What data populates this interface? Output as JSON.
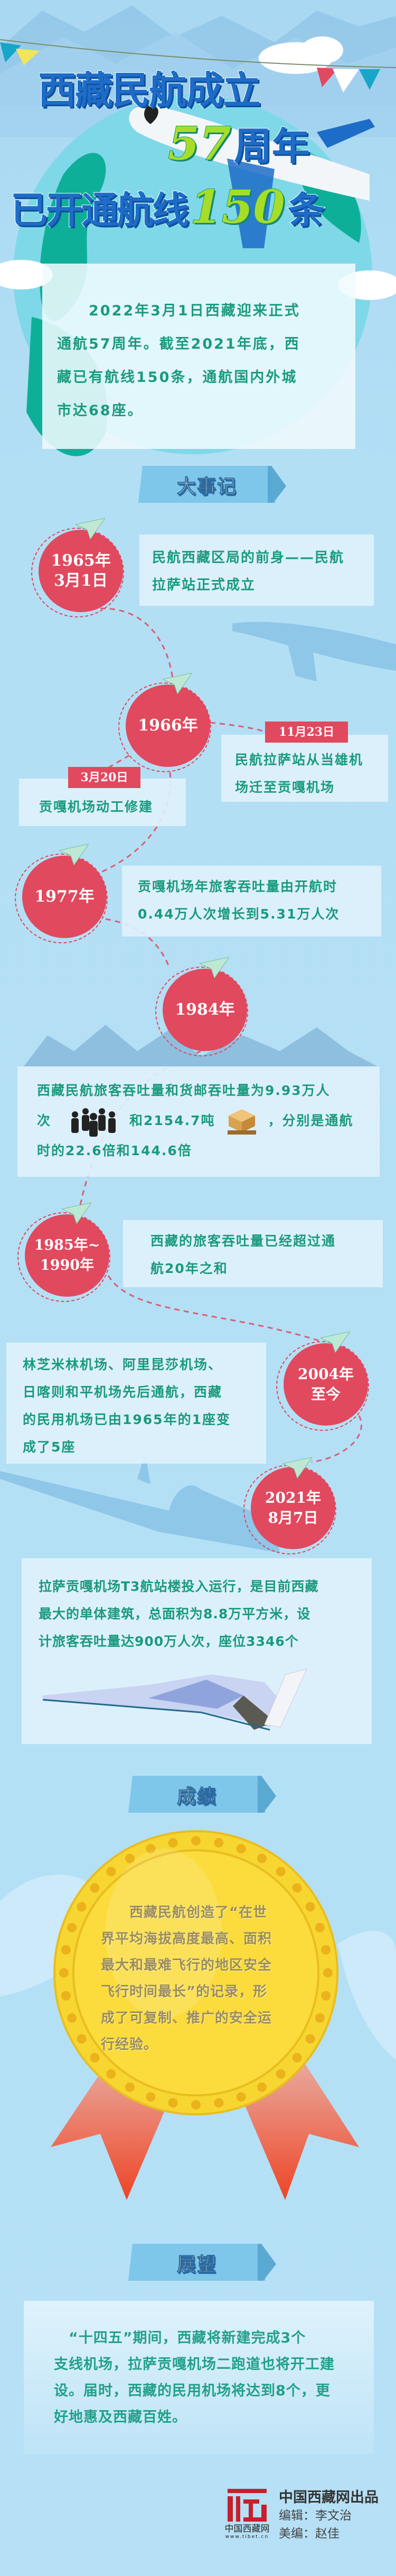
{
  "header": {
    "title_line1": "西藏民航成立",
    "anniversary_number": "57",
    "anniversary_suffix": "周年",
    "title_line2_prefix": "已开通航线",
    "routes_number": "150",
    "routes_suffix": "条"
  },
  "intro": {
    "lines": [
      "　　2022年3月1日西藏迎来正式",
      "通航57周年。截至2021年底，西",
      "藏已有航线150条，通航国内外城",
      "市达68座。"
    ]
  },
  "sections": {
    "milestones": "大事记",
    "achievements": "成绩",
    "outlook": "展望"
  },
  "timeline": [
    {
      "date_lines": [
        "1965年",
        "3月1日"
      ],
      "lines": [
        "民航西藏区局的前身——民航",
        "拉萨站正式成立"
      ]
    },
    {
      "date_lines": [
        "1966年"
      ],
      "sub_events": [
        {
          "tag": "11月23日",
          "lines": [
            "民航拉萨站从当雄机",
            "场迁至贡嘎机场"
          ]
        },
        {
          "tag": "3月20日",
          "lines": [
            "贡嘎机场动工修建"
          ]
        }
      ]
    },
    {
      "date_lines": [
        "1977年"
      ],
      "lines": [
        "贡嘎机场年旅客吞吐量由开航时",
        "0.44万人次增长到5.31万人次"
      ]
    },
    {
      "date_lines": [
        "1984年"
      ],
      "line1": "西藏民航旅客吞吐量和货邮吞吐量为9.93万人",
      "line2_a": "次",
      "line2_b": "和2154.7吨",
      "line2_c": "，分别是通航",
      "line3": "时的22.6倍和144.6倍",
      "icons": [
        "crowd-icon",
        "cargo-pallet-icon"
      ]
    },
    {
      "date_lines": [
        "1985年~",
        "1990年"
      ],
      "lines": [
        "西藏的旅客吞吐量已经超过通",
        "航20年之和"
      ]
    },
    {
      "date_lines": [
        "2004年",
        "至今"
      ],
      "lines": [
        "林芝米林机场、阿里昆莎机场、",
        "日喀则和平机场先后通航，西藏",
        "的民用机场已由1965年的1座变",
        "成了5座"
      ]
    },
    {
      "date_lines": [
        "2021年",
        "8月7日"
      ],
      "lines": [
        "拉萨贡嘎机场T3航站楼投入运行，是目前西藏",
        "最大的单体建筑，总面积为8.8万平方米，设",
        "计旅客吞吐量达900万人次，座位3346个"
      ]
    }
  ],
  "achievement": {
    "lines": [
      "　　西藏民航创造了“在世",
      "界平均海拔高度最高、面积",
      "最大和最难飞行的地区安全",
      "飞行时间最长”的记录，形",
      "成了可复制、推广的安全运",
      "行经验。"
    ]
  },
  "outlook": {
    "lines": [
      "　“十四五”期间，西藏将新建完成3个",
      "支线机场，拉萨贡嘎机场二跑道也将开工建",
      "设。届时，西藏的民用机场将达到8个，更",
      "好地惠及西藏百姓。"
    ]
  },
  "footer": {
    "logo_name": "中国西藏网",
    "logo_url": "www.tibet.cn",
    "producer": "中国西藏网出品",
    "editor": "编辑：李文治",
    "art_editor": "美编：赵佳"
  },
  "colors": {
    "accent_red": "#e1495e",
    "text_teal": "#1a9a7e",
    "title_blue": "#1d6cc8",
    "background": "#b5e0f6",
    "medal_gold": "#f8d93a"
  }
}
